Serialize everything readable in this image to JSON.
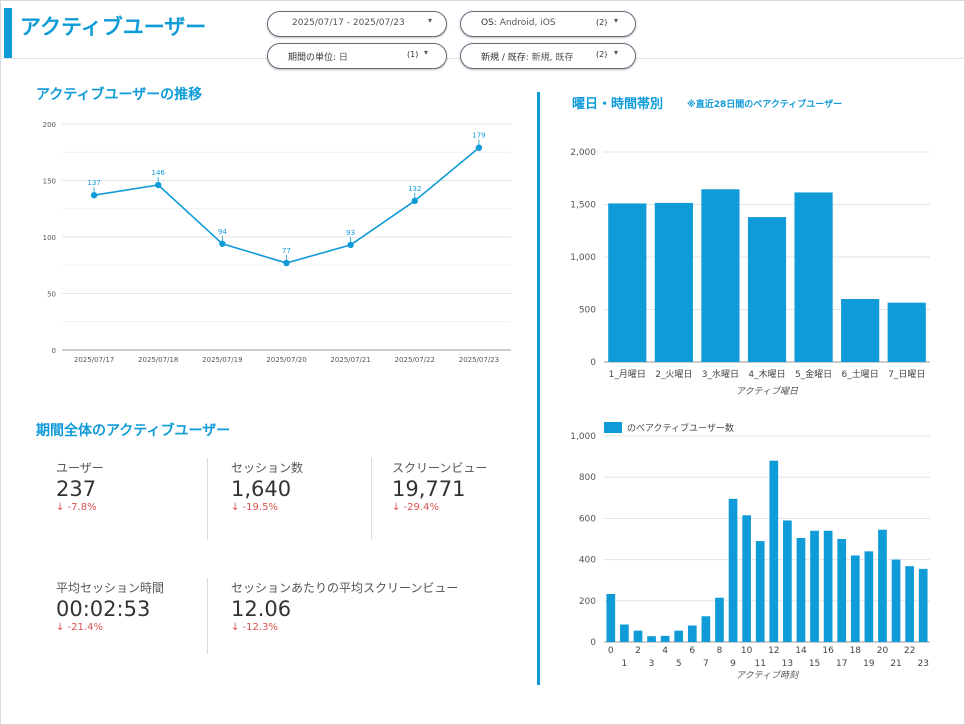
{
  "header": {
    "title": "アクティブユーザー"
  },
  "filters": {
    "date_range": {
      "label": "2025/07/17 - 2025/07/23"
    },
    "os": {
      "label": "OS",
      "value": ": Android, iOS",
      "count": "(2)"
    },
    "period": {
      "label": "期間の単位",
      "value": ": 日",
      "count": "(1)"
    },
    "new_returning": {
      "label": "新規 / 既存",
      "value": ": 新規, 既存",
      "count": "(2)"
    }
  },
  "trend": {
    "title": "アクティブユーザーの推移",
    "chart_data": {
      "type": "line",
      "categories": [
        "2025/07/17",
        "2025/07/18",
        "2025/07/19",
        "2025/07/20",
        "2025/07/21",
        "2025/07/22",
        "2025/07/23"
      ],
      "values": [
        137,
        146,
        94,
        77,
        93,
        132,
        179
      ],
      "ylim": [
        0,
        200
      ],
      "yticks": [
        0,
        50,
        100,
        150,
        200
      ],
      "grid": true,
      "color": "#0f9bd7"
    }
  },
  "summary": {
    "title": "期間全体のアクティブユーザー",
    "kpis": [
      {
        "label": "ユーザー",
        "value": "237",
        "delta": "-7.8%"
      },
      {
        "label": "セッション数",
        "value": "1,640",
        "delta": "-19.5%"
      },
      {
        "label": "スクリーンビュー",
        "value": "19,771",
        "delta": "-29.4%"
      },
      {
        "label": "平均セッション時間",
        "value": "00:02:53",
        "delta": "-21.4%"
      },
      {
        "label": "セッションあたりの平均スクリーンビュー",
        "value": "12.06",
        "delta": "-12.3%"
      }
    ],
    "delta_arrow": "↓",
    "delta_color": "#d9534f"
  },
  "weekday": {
    "title": "曜日・時間帯別",
    "note": "※直近28日間のべアクティブユーザー",
    "chart_data": {
      "type": "bar",
      "categories": [
        "1_月曜日",
        "2_火曜日",
        "3_水曜日",
        "4_木曜日",
        "5_金曜日",
        "6_土曜日",
        "7_日曜日"
      ],
      "values": [
        1510,
        1515,
        1645,
        1380,
        1615,
        600,
        565
      ],
      "ylim": [
        0,
        2000
      ],
      "yticks": [
        "0",
        "500",
        "1,000",
        "1,500",
        "2,000"
      ],
      "xlabel": "アクティブ曜日",
      "grid": true,
      "color": "#0f9bd7"
    }
  },
  "hourly": {
    "chart_data": {
      "type": "bar",
      "categories": [
        "0",
        "1",
        "2",
        "3",
        "4",
        "5",
        "6",
        "7",
        "8",
        "9",
        "10",
        "11",
        "12",
        "13",
        "14",
        "15",
        "16",
        "17",
        "18",
        "19",
        "20",
        "21",
        "22",
        "23"
      ],
      "series": [
        {
          "name": "のべアクティブユーザー数",
          "values": [
            233,
            85,
            55,
            28,
            30,
            55,
            80,
            125,
            215,
            695,
            615,
            490,
            880,
            590,
            505,
            540,
            540,
            500,
            420,
            440,
            545,
            400,
            368,
            355
          ]
        }
      ],
      "ylim": [
        0,
        1000
      ],
      "yticks": [
        "0",
        "200",
        "400",
        "600",
        "800",
        "1,000"
      ],
      "xlabel": "アクティブ時刻",
      "grid": true,
      "color": "#0f9bd7"
    }
  }
}
